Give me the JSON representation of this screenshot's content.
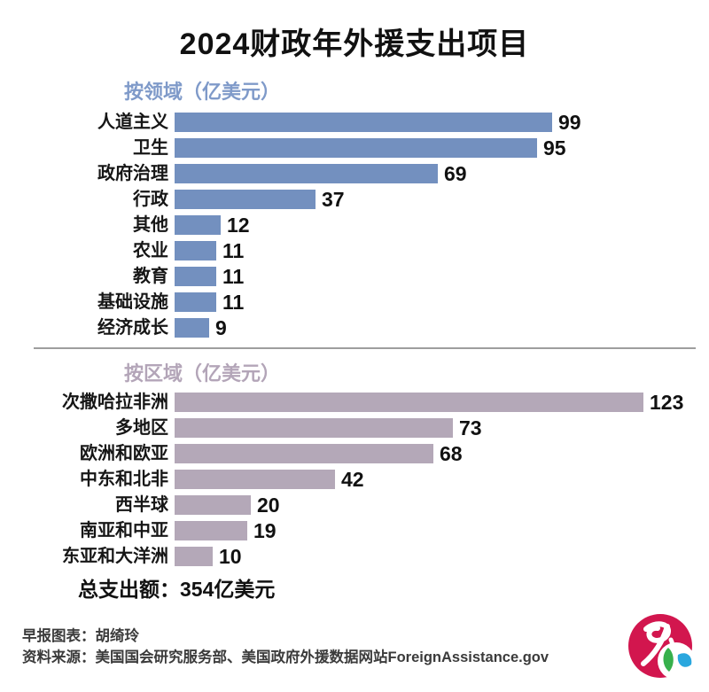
{
  "title": "2024财政年外援支出项目",
  "colors": {
    "sector_bar": "#7390bf",
    "sector_heading": "#7f9ac9",
    "region_bar": "#b4a8b8",
    "region_heading": "#b3a5b8",
    "divider": "#9e9e9e",
    "logo_red": "#d2164e",
    "logo_green": "#37b04c",
    "logo_blue": "#2aa7de"
  },
  "chart_data": [
    {
      "type": "bar",
      "orientation": "horizontal",
      "title": "按领域（亿美元）",
      "unit": "亿美元",
      "categories": [
        "人道主义",
        "卫生",
        "政府治理",
        "行政",
        "其他",
        "农业",
        "教育",
        "基础设施",
        "经济成长"
      ],
      "values": [
        99,
        95,
        69,
        37,
        12,
        11,
        11,
        11,
        9
      ],
      "xlim": [
        0,
        130
      ],
      "grid": false,
      "value_labels": "end-of-bar"
    },
    {
      "type": "bar",
      "orientation": "horizontal",
      "title": "按区域（亿美元）",
      "unit": "亿美元",
      "categories": [
        "次撒哈拉非洲",
        "多地区",
        "欧洲和欧亚",
        "中东和北非",
        "西半球",
        "南亚和中亚",
        "东亚和大洋洲"
      ],
      "values": [
        123,
        73,
        68,
        42,
        20,
        19,
        10
      ],
      "xlim": [
        0,
        130
      ],
      "grid": false,
      "value_labels": "end-of-bar"
    }
  ],
  "total_line": "总支出额：354亿美元",
  "footer": {
    "credit": "早报图表：胡绮玲",
    "source": "资料来源：美国国会研究服务部、美国政府外援数据网站ForeignAssistance.gov"
  }
}
